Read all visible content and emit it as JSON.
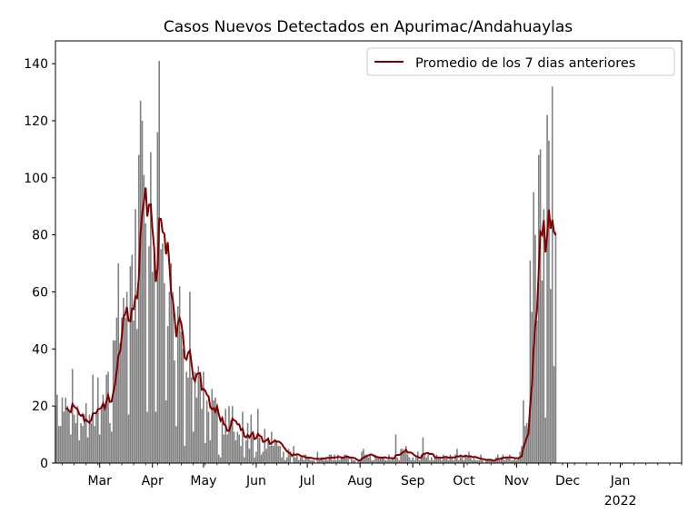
{
  "chart_data": {
    "type": "bar",
    "title": "Casos Nuevos Detectados en Apurimac/Andahuaylas",
    "xlabel": "",
    "ylabel": "",
    "ylim": [
      0,
      148
    ],
    "y_ticks": [
      0,
      20,
      40,
      60,
      80,
      100,
      120,
      140
    ],
    "x_range": [
      "2021-02-03",
      "2022-02-06"
    ],
    "x_ticks": [
      {
        "date": "2021-03-01",
        "label": "Mar",
        "sublabel": ""
      },
      {
        "date": "2021-04-01",
        "label": "Apr",
        "sublabel": ""
      },
      {
        "date": "2021-05-01",
        "label": "May",
        "sublabel": ""
      },
      {
        "date": "2021-06-01",
        "label": "Jun",
        "sublabel": ""
      },
      {
        "date": "2021-07-01",
        "label": "Jul",
        "sublabel": ""
      },
      {
        "date": "2021-08-01",
        "label": "Aug",
        "sublabel": ""
      },
      {
        "date": "2021-09-01",
        "label": "Sep",
        "sublabel": ""
      },
      {
        "date": "2021-10-01",
        "label": "Oct",
        "sublabel": ""
      },
      {
        "date": "2021-11-01",
        "label": "Nov",
        "sublabel": ""
      },
      {
        "date": "2021-12-01",
        "label": "Dec",
        "sublabel": ""
      },
      {
        "date": "2022-01-01",
        "label": "Jan",
        "sublabel": "2022"
      }
    ],
    "grid": false,
    "legend_position": "top-right",
    "bar_color": "#808080",
    "line_color": "#800000",
    "start_date": "2021-02-03",
    "daily_cases": [
      20,
      24,
      13,
      13,
      23,
      18,
      23,
      20,
      18,
      10,
      33,
      17,
      14,
      20,
      8,
      14,
      13,
      17,
      21,
      9,
      17,
      14,
      31,
      13,
      18,
      30,
      10,
      20,
      24,
      19,
      31,
      32,
      14,
      11,
      43,
      43,
      51,
      70,
      42,
      51,
      58,
      51,
      60,
      17,
      69,
      73,
      50,
      89,
      47,
      108,
      127,
      120,
      101,
      84,
      18,
      76,
      109,
      67,
      73,
      18,
      116,
      141,
      75,
      77,
      63,
      22,
      48,
      60,
      70,
      60,
      36,
      13,
      55,
      62,
      46,
      40,
      6,
      32,
      30,
      60,
      30,
      11,
      32,
      23,
      34,
      31,
      19,
      32,
      7,
      22,
      18,
      8,
      26,
      22,
      23,
      20,
      3,
      2,
      15,
      10,
      19,
      10,
      20,
      15,
      20,
      11,
      8,
      11,
      10,
      6,
      18,
      2,
      8,
      14,
      5,
      17,
      11,
      2,
      4,
      19,
      9,
      3,
      4,
      12,
      5,
      8,
      6,
      11,
      6,
      8,
      8,
      6,
      6,
      2,
      4,
      1,
      2,
      5,
      4,
      0,
      6,
      2,
      3,
      1,
      2,
      2,
      1,
      3,
      2,
      2,
      1,
      1,
      1,
      0,
      4,
      1,
      2,
      2,
      1,
      2,
      1,
      3,
      3,
      1,
      3,
      1,
      3,
      1,
      2,
      2,
      3,
      3,
      2,
      0,
      2,
      1,
      1,
      0,
      1,
      1,
      4,
      5,
      3,
      3,
      2,
      3,
      1,
      1,
      3,
      2,
      2,
      2,
      2,
      2,
      1,
      1,
      3,
      1,
      2,
      1,
      10,
      2,
      1,
      5,
      5,
      4,
      6,
      3,
      2,
      1,
      2,
      1,
      2,
      4,
      1,
      3,
      9,
      3,
      2,
      3,
      1,
      2,
      1,
      2,
      3,
      2,
      2,
      1,
      3,
      2,
      2,
      1,
      3,
      2,
      1,
      3,
      5,
      1,
      3,
      2,
      1,
      3,
      2,
      4,
      2,
      1,
      2,
      1,
      1,
      1,
      3,
      1,
      0,
      1,
      1,
      1,
      1,
      1,
      1,
      2,
      3,
      1,
      2,
      3,
      1,
      2,
      2,
      3,
      1,
      1,
      2,
      1,
      2,
      4,
      6,
      22,
      13,
      14,
      12,
      71,
      53,
      95,
      80,
      50,
      108,
      110,
      64,
      89,
      16,
      122,
      113,
      61,
      132,
      34,
      81
    ]
  },
  "legend": {
    "line_label": "Promedio de los 7 dias anteriores"
  }
}
